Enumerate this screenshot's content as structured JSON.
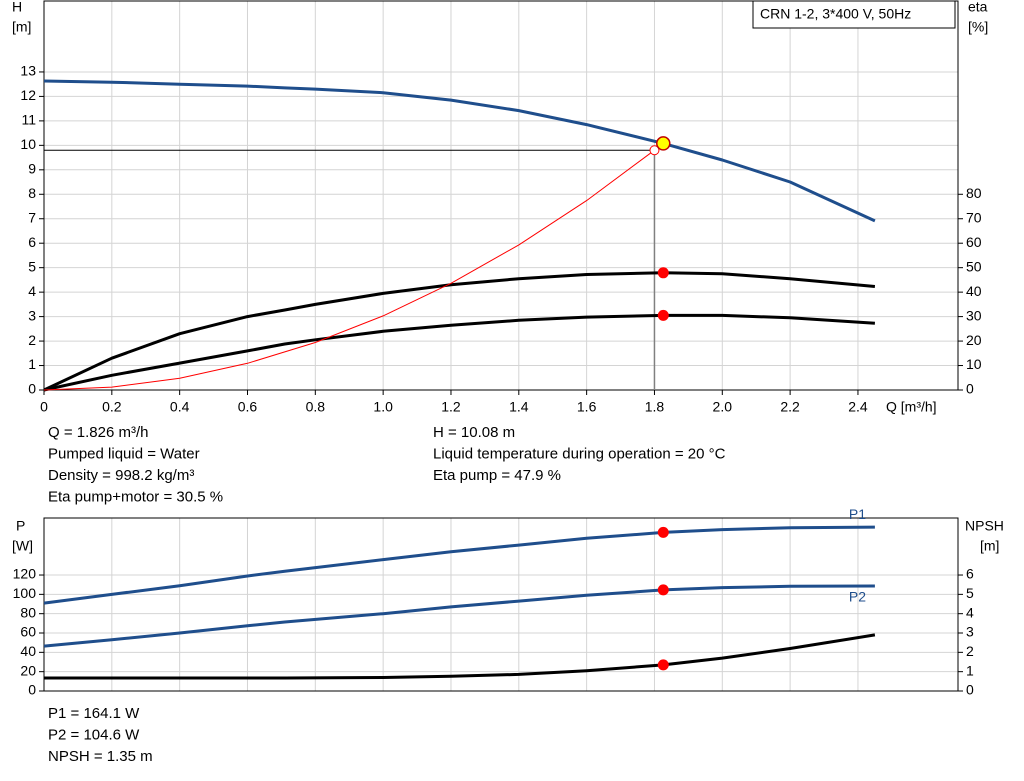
{
  "chart_data": [
    {
      "type": "line",
      "legend_box": "CRN 1-2, 3*400 V, 50Hz",
      "y_label": "H",
      "y_unit": "[m]",
      "y2_label": "eta",
      "y2_unit": "[%]",
      "x_label": "Q [m³/h]",
      "x": [
        0,
        0.2,
        0.4,
        0.6,
        0.71,
        0.8,
        1.0,
        1.2,
        1.4,
        1.6,
        1.826,
        2.0,
        2.2,
        2.45
      ],
      "xlim": [
        0,
        2.695
      ],
      "xticks": [
        0,
        0.2,
        0.4,
        0.6,
        0.8,
        {
          "value": 1.0,
          "label": "1.0"
        },
        1.2,
        1.4,
        1.6,
        1.8,
        {
          "value": 2.0,
          "label": "2.0"
        },
        2.2,
        2.4
      ],
      "ylim": [
        0,
        15.9
      ],
      "yticks": [
        0,
        1,
        2,
        3,
        4,
        5,
        6,
        7,
        8,
        9,
        10,
        11,
        12,
        13
      ],
      "y2lim": [
        0,
        159
      ],
      "y2ticks": [
        0,
        10,
        20,
        30,
        40,
        50,
        60,
        70,
        80
      ],
      "grid": true,
      "series": [
        {
          "color": "#1f4e8c",
          "values": [
            12.63,
            12.58,
            12.5,
            12.42,
            12.35,
            12.3,
            12.15,
            11.85,
            11.42,
            10.85,
            10.08,
            9.4,
            8.5,
            6.91
          ]
        },
        {
          "color": "#000000",
          "axis": "y2",
          "values": [
            0,
            13,
            23,
            30,
            32.7,
            35,
            39.5,
            43,
            45.5,
            47.2,
            47.9,
            47.5,
            45.5,
            42.3
          ]
        },
        {
          "color": "#000000",
          "axis": "y2",
          "values": [
            0,
            6,
            11,
            16,
            18.8,
            20.5,
            24,
            26.5,
            28.5,
            29.8,
            30.5,
            30.5,
            29.5,
            27.3
          ]
        },
        {
          "color": "#ff0000",
          "thin": true,
          "x": [
            0,
            0.2,
            0.4,
            0.6,
            0.8,
            1.0,
            1.2,
            1.4,
            1.6,
            1.8
          ],
          "values": [
            0,
            0.12,
            0.48,
            1.09,
            1.94,
            3.03,
            4.36,
            5.93,
            7.74,
            9.8
          ]
        }
      ],
      "marker_x": 1.826,
      "operating_point": {
        "x": 1.826,
        "y": 10.08
      },
      "duty_point": {
        "x": 1.8,
        "y": 9.8
      },
      "info": [
        [
          "Q = 1.826 m³/h",
          "Pumped liquid = Water",
          "Density = 998.2 kg/m³",
          "Eta pump+motor = 30.5 %"
        ],
        [
          "H = 10.08 m",
          "Liquid temperature during operation = 20 °C",
          "Eta pump = 47.9 %"
        ]
      ]
    },
    {
      "type": "line",
      "y_label": "P",
      "y_unit": "[W]",
      "y2_label": "NPSH",
      "y2_unit": "[m]",
      "x": [
        0,
        0.2,
        0.4,
        0.6,
        0.71,
        1.0,
        1.2,
        1.4,
        1.6,
        1.826,
        2.0,
        2.2,
        2.45
      ],
      "xlim": [
        0,
        2.695
      ],
      "xgrid": [
        0,
        0.2,
        0.4,
        0.6,
        0.8,
        1.0,
        1.2,
        1.4,
        1.6,
        1.8,
        2.0,
        2.2,
        2.4
      ],
      "ylim": [
        0,
        179
      ],
      "yticks": [
        0,
        20,
        40,
        60,
        80,
        100,
        120
      ],
      "y2lim": [
        0,
        8.95
      ],
      "y2ticks": [
        0,
        1,
        2,
        3,
        4,
        5,
        6
      ],
      "grid": true,
      "series": [
        {
          "name": "P1",
          "color": "#1f4e8c",
          "values": [
            91,
            100,
            109,
            119,
            124,
            136,
            144,
            151,
            158,
            164.1,
            167,
            169,
            169.6
          ]
        },
        {
          "name": "P2",
          "color": "#1f4e8c",
          "values": [
            46.5,
            53,
            60,
            67.5,
            71.4,
            80,
            87,
            93,
            99,
            104.6,
            107,
            108.3,
            108.6
          ]
        },
        {
          "color": "#000000",
          "axis": "y2",
          "values": [
            0.67,
            0.67,
            0.67,
            0.67,
            0.67,
            0.7,
            0.76,
            0.86,
            1.05,
            1.35,
            1.7,
            2.2,
            2.9
          ]
        }
      ],
      "marker_x": 1.826,
      "info": [
        [
          "P1 = 164.1 W",
          "P2 = 104.6 W",
          "NPSH = 1.35 m"
        ]
      ]
    }
  ]
}
